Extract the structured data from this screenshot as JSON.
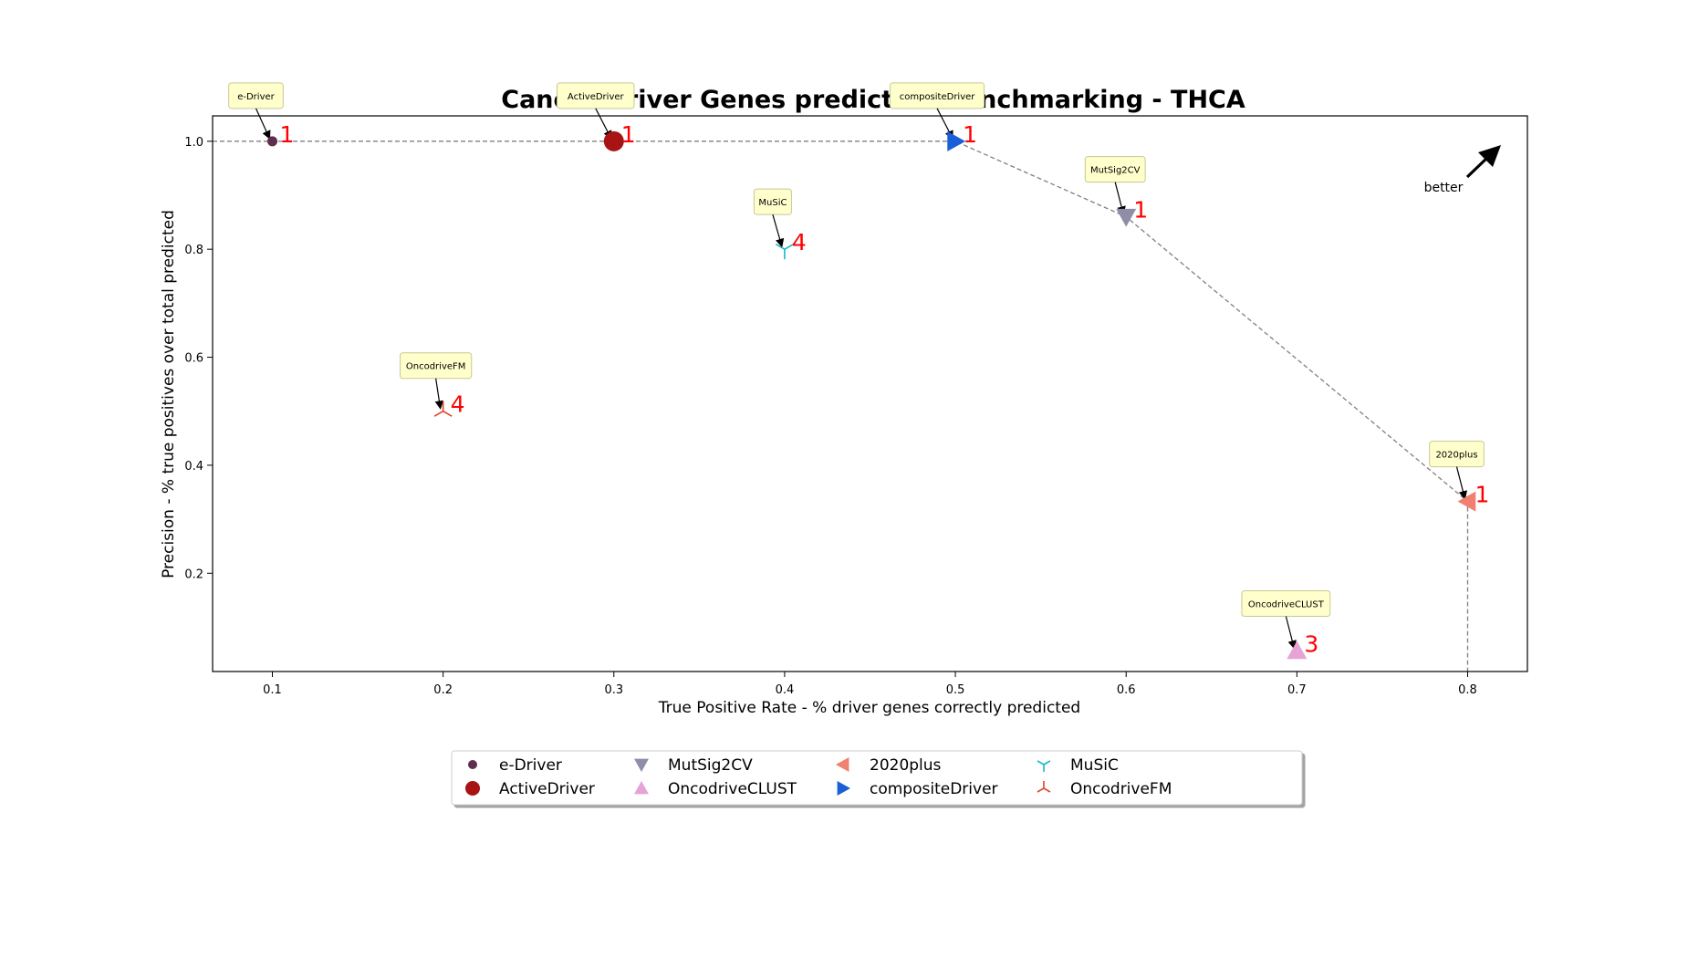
{
  "chart_data": {
    "type": "scatter",
    "title": "Cancer Driver Genes prediction benchmarking - THCA",
    "xlabel": "True Positive Rate - % driver genes correctly predicted",
    "ylabel": "Precision - % true positives over total predicted",
    "xlim": [
      0.065,
      0.835
    ],
    "ylim": [
      0.018,
      1.047
    ],
    "xticks": [
      "0.1",
      "0.2",
      "0.3",
      "0.4",
      "0.5",
      "0.6",
      "0.7",
      "0.8"
    ],
    "yticks": [
      "0.2",
      "0.4",
      "0.6",
      "0.8",
      "1.0"
    ],
    "grid": false,
    "legend_position": "bottom-center",
    "annotation_better": "better",
    "series": [
      {
        "name": "e-Driver",
        "x": 0.1,
        "y": 1.0,
        "rank": "1",
        "marker": "circle-small",
        "color": "#5e2d4f"
      },
      {
        "name": "ActiveDriver",
        "x": 0.3,
        "y": 1.0,
        "rank": "1",
        "marker": "circle",
        "color": "#a81414"
      },
      {
        "name": "compositeDriver",
        "x": 0.5,
        "y": 1.0,
        "rank": "1",
        "marker": "triangle-right",
        "color": "#1a5fd8"
      },
      {
        "name": "MuSiC",
        "x": 0.4,
        "y": 0.8,
        "rank": "4",
        "marker": "tri-down",
        "color": "#18b6c8"
      },
      {
        "name": "MutSig2CV",
        "x": 0.6,
        "y": 0.86,
        "rank": "1",
        "marker": "triangle-down",
        "color": "#8e8ea8"
      },
      {
        "name": "OncodriveFM",
        "x": 0.2,
        "y": 0.5,
        "rank": "4",
        "marker": "tri-up",
        "color": "#e0442a"
      },
      {
        "name": "2020plus",
        "x": 0.8,
        "y": 0.333,
        "rank": "1",
        "marker": "triangle-left",
        "color": "#f08070"
      },
      {
        "name": "OncodriveCLUST",
        "x": 0.7,
        "y": 0.056,
        "rank": "3",
        "marker": "triangle-up",
        "color": "#e6a3d6"
      }
    ],
    "legend_order": [
      "e-Driver",
      "ActiveDriver",
      "MutSig2CV",
      "OncodriveCLUST",
      "2020plus",
      "compositeDriver",
      "MuSiC",
      "OncodriveFM"
    ],
    "pareto_frontier": [
      [
        0.065,
        1.0
      ],
      [
        0.5,
        1.0
      ],
      [
        0.6,
        0.86
      ],
      [
        0.8,
        0.333
      ],
      [
        0.8,
        0.018
      ]
    ],
    "colors": {
      "rank_label": "#ff0000",
      "callout_fill": "#ffffcc",
      "frontier": "#808080"
    }
  }
}
